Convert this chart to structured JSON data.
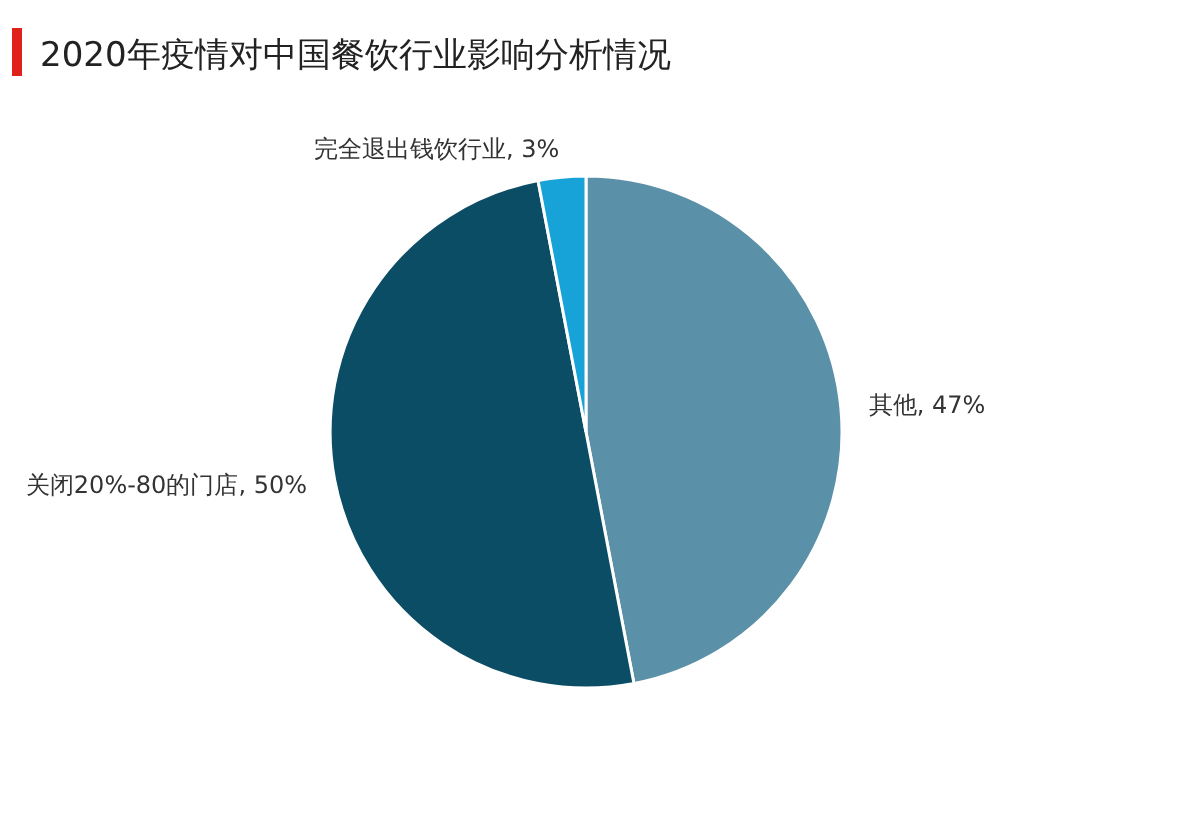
{
  "chart_data": {
    "type": "pie",
    "title": "2020年疫情对中国餐饮行业影响分析情况",
    "categories": [
      "其他",
      "关闭20%-80的门店",
      "完全退出钱饮行业"
    ],
    "values": [
      47,
      50,
      3
    ],
    "value_labels": [
      "47%",
      "50%",
      "3%"
    ],
    "colors": [
      "#5b91a8",
      "#0c4d66",
      "#17a2d8"
    ]
  }
}
